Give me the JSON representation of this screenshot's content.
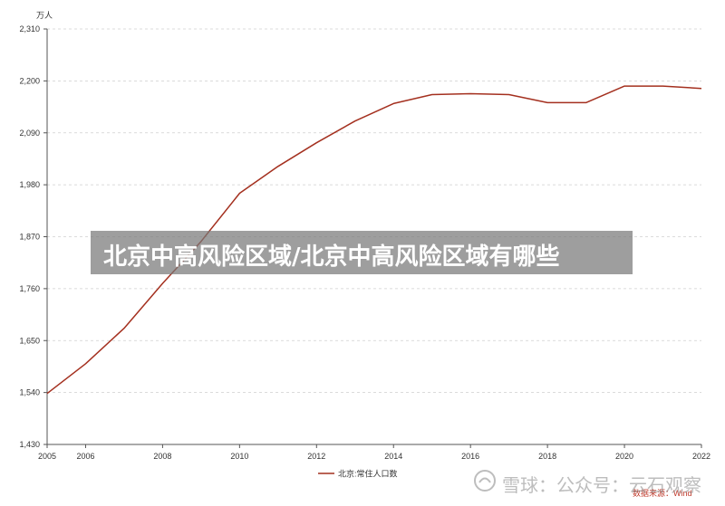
{
  "chart_data": {
    "type": "line",
    "x": [
      2005,
      2006,
      2007,
      2008,
      2009,
      2010,
      2011,
      2012,
      2013,
      2014,
      2015,
      2016,
      2017,
      2018,
      2019,
      2020,
      2021,
      2022
    ],
    "series": [
      {
        "name": "北京:常住人口数",
        "values": [
          1538,
          1601,
          1676,
          1771,
          1860,
          1962,
          2019,
          2069,
          2115,
          2152,
          2171,
          2173,
          2171,
          2154,
          2154,
          2189,
          2189,
          2184
        ]
      }
    ],
    "x_ticks": [
      "2005",
      "2006",
      "2008",
      "2010",
      "2012",
      "2014",
      "2016",
      "2018",
      "2020",
      "2022"
    ],
    "y_ticks": [
      "1,430",
      "1,540",
      "1,650",
      "1,760",
      "1,870",
      "1,980",
      "2,090",
      "2,200",
      "2,310"
    ],
    "ylim": [
      1430,
      2310
    ],
    "xlim": [
      2005,
      2022
    ],
    "ylabel": "万人",
    "grid": true,
    "legend_position": "bottom-center",
    "line_color": "#a4301f"
  },
  "source": "数据来源：Wind",
  "banner": {
    "title": "北京中高风险区域/北京中高风险区域有哪些"
  },
  "watermark": {
    "text": "雪球：公众号：云石观察"
  }
}
